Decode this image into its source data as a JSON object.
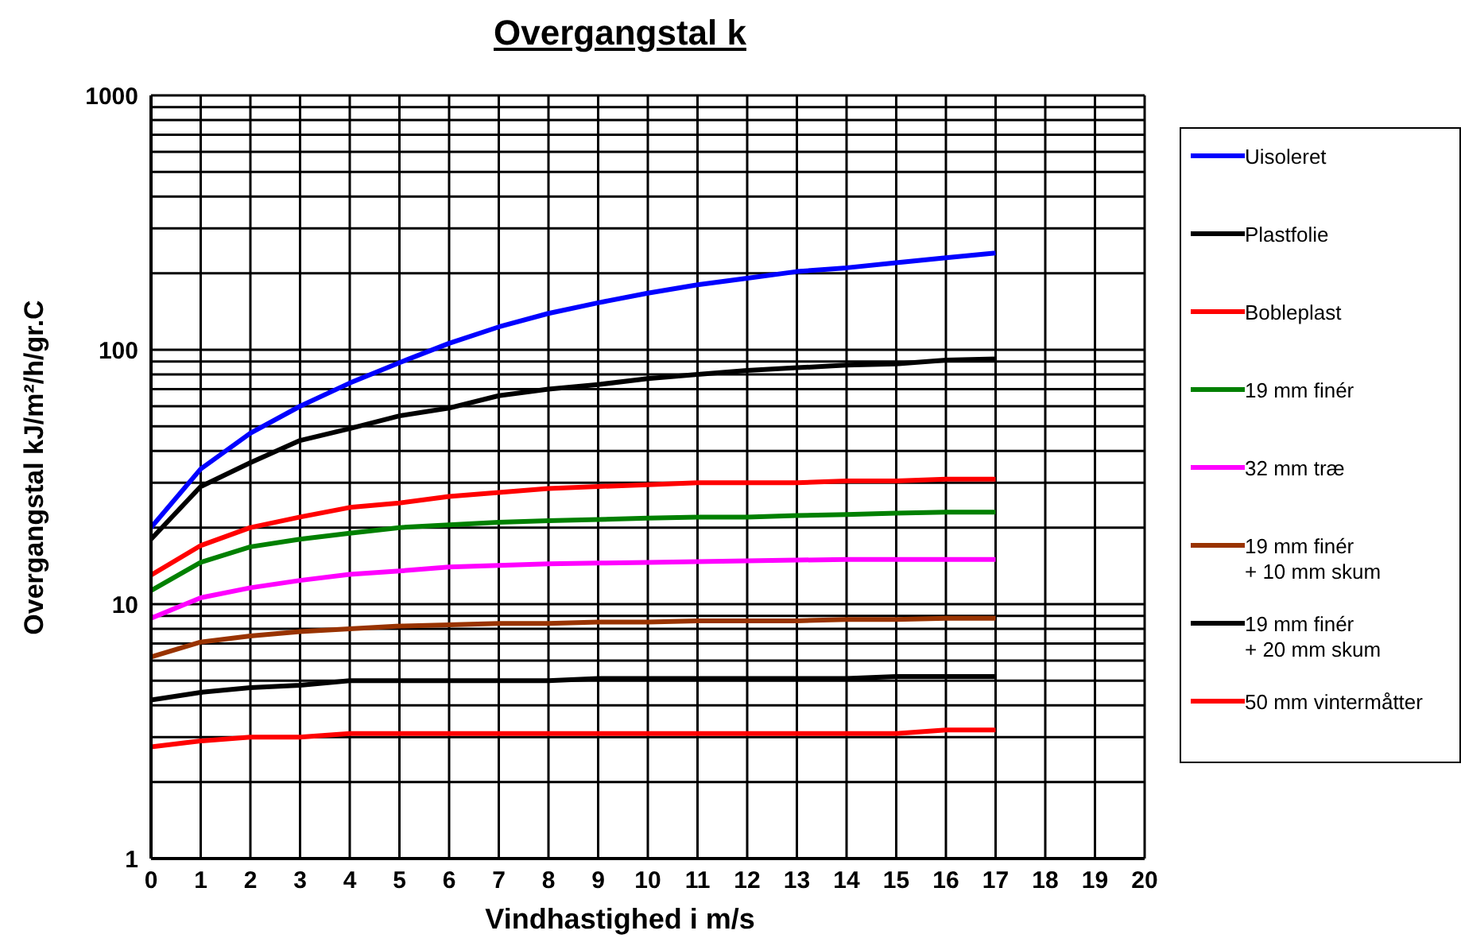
{
  "chart_data": {
    "type": "line",
    "title": "Overgangstal k",
    "xlabel": "Vindhastighed i m/s",
    "ylabel": "Overgangstal kJ/m²/h/gr.C",
    "x": [
      0,
      1,
      2,
      3,
      4,
      5,
      6,
      7,
      8,
      9,
      10,
      11,
      12,
      13,
      14,
      15,
      16,
      17
    ],
    "series": [
      {
        "name": "Uisoleret",
        "color": "#0000ff",
        "values": [
          20,
          34,
          47,
          60,
          74,
          89,
          106,
          123,
          139,
          153,
          167,
          180,
          191,
          203,
          210,
          220,
          230,
          240
        ]
      },
      {
        "name": "Plastfolie",
        "color": "#000000",
        "values": [
          18,
          29,
          36,
          44,
          49,
          55,
          59,
          66,
          70,
          73,
          77,
          80,
          83,
          85,
          87,
          88,
          91,
          92
        ]
      },
      {
        "name": "Bobleplast",
        "color": "#ff0000",
        "values": [
          13,
          17,
          20,
          22,
          24,
          25,
          26.5,
          27.5,
          28.5,
          29,
          29.5,
          30,
          30,
          30,
          30.5,
          30.5,
          31,
          31
        ]
      },
      {
        "name": "19 mm finér",
        "color": "#008000",
        "values": [
          11.3,
          14.6,
          16.8,
          18,
          19,
          20,
          20.5,
          21,
          21.3,
          21.5,
          21.8,
          22,
          22,
          22.3,
          22.5,
          22.8,
          23,
          23
        ]
      },
      {
        "name": "32 mm træ",
        "color": "#ff00ff",
        "values": [
          8.8,
          10.6,
          11.6,
          12.4,
          13.1,
          13.5,
          14,
          14.2,
          14.4,
          14.5,
          14.6,
          14.7,
          14.8,
          14.9,
          15,
          15,
          15,
          15
        ]
      },
      {
        "name": "19 mm finér\n+ 10 mm skum",
        "color": "#993300",
        "values": [
          6.2,
          7.1,
          7.5,
          7.8,
          8,
          8.2,
          8.3,
          8.4,
          8.4,
          8.5,
          8.5,
          8.6,
          8.6,
          8.6,
          8.7,
          8.7,
          8.8,
          8.8
        ]
      },
      {
        "name": "19 mm finér\n+ 20 mm skum",
        "color": "#000000",
        "values": [
          4.2,
          4.5,
          4.7,
          4.8,
          5,
          5,
          5,
          5,
          5,
          5.1,
          5.1,
          5.1,
          5.1,
          5.1,
          5.1,
          5.2,
          5.2,
          5.2
        ]
      },
      {
        "name": "50 mm vintermåtter",
        "color": "#ff0000",
        "values": [
          2.75,
          2.9,
          3,
          3,
          3.1,
          3.1,
          3.1,
          3.1,
          3.1,
          3.1,
          3.1,
          3.1,
          3.1,
          3.1,
          3.1,
          3.1,
          3.2,
          3.2
        ]
      }
    ],
    "log": "y",
    "xlim": [
      0,
      20
    ],
    "xticks": [
      0,
      1,
      2,
      3,
      4,
      5,
      6,
      7,
      8,
      9,
      10,
      11,
      12,
      13,
      14,
      15,
      16,
      17,
      18,
      19,
      20
    ],
    "ylim": [
      1,
      1000
    ],
    "yticks": [
      1,
      {
        "value": 2,
        "label": null
      },
      {
        "value": 3,
        "label": null
      },
      {
        "value": 4,
        "label": null
      },
      {
        "value": 5,
        "label": null
      },
      {
        "value": 6,
        "label": null
      },
      {
        "value": 7,
        "label": null
      },
      {
        "value": 8,
        "label": null
      },
      {
        "value": 9,
        "label": null
      },
      10,
      {
        "value": 20,
        "label": null
      },
      {
        "value": 30,
        "label": null
      },
      {
        "value": 40,
        "label": null
      },
      {
        "value": 50,
        "label": null
      },
      {
        "value": 60,
        "label": null
      },
      {
        "value": 70,
        "label": null
      },
      {
        "value": 80,
        "label": null
      },
      {
        "value": 90,
        "label": null
      },
      100,
      {
        "value": 200,
        "label": null
      },
      {
        "value": 300,
        "label": null
      },
      {
        "value": 400,
        "label": null
      },
      {
        "value": 500,
        "label": null
      },
      {
        "value": 600,
        "label": null
      },
      {
        "value": 700,
        "label": null
      },
      {
        "value": 800,
        "label": null
      },
      {
        "value": 900,
        "label": null
      },
      1000
    ],
    "grid": true,
    "legend": "right",
    "marker": "none",
    "line_style": "solid"
  }
}
